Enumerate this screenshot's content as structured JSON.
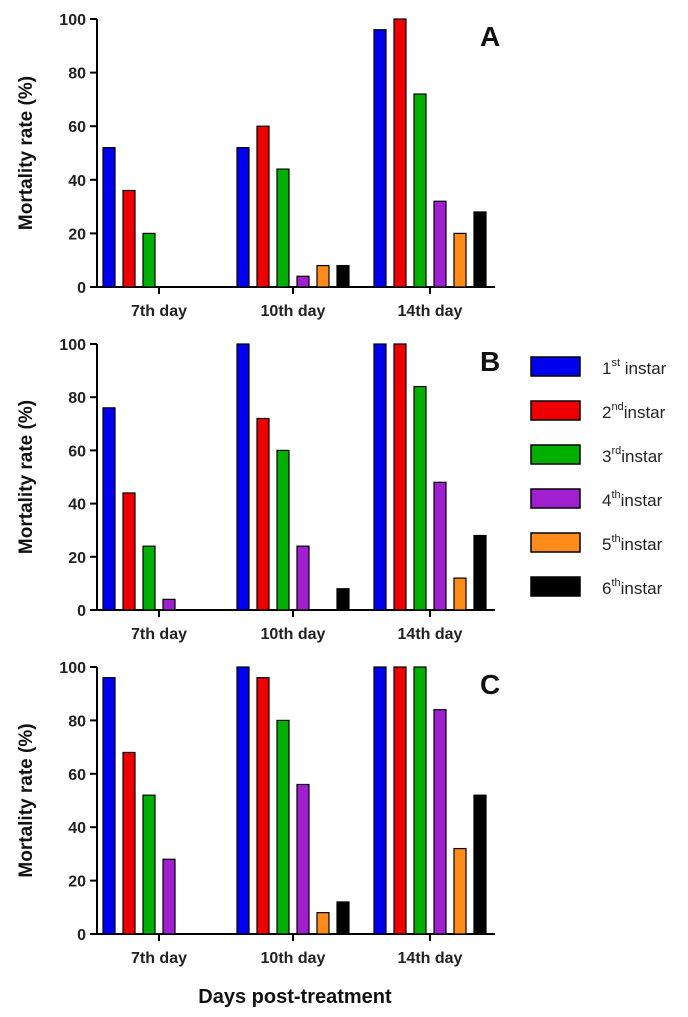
{
  "chart_data": [
    {
      "type": "bar",
      "panel_label": "A",
      "ylabel": "Mortality rate (%)",
      "ylim": [
        0,
        100
      ],
      "yticks": [
        0,
        20,
        40,
        60,
        80,
        100
      ],
      "categories": [
        "7th day",
        "10th day",
        "14th day"
      ],
      "series": [
        {
          "name": "1st instar",
          "values": [
            52,
            52,
            96
          ]
        },
        {
          "name": "2nd instar",
          "values": [
            36,
            60,
            100
          ]
        },
        {
          "name": "3rd instar",
          "values": [
            20,
            44,
            72
          ]
        },
        {
          "name": "4th instar",
          "values": [
            0,
            4,
            32
          ]
        },
        {
          "name": "5th instar",
          "values": [
            0,
            8,
            20
          ]
        },
        {
          "name": "6th instar",
          "values": [
            0,
            8,
            28
          ]
        }
      ]
    },
    {
      "type": "bar",
      "panel_label": "B",
      "ylabel": "Mortality rate (%)",
      "ylim": [
        0,
        100
      ],
      "yticks": [
        0,
        20,
        40,
        60,
        80,
        100
      ],
      "categories": [
        "7th day",
        "10th day",
        "14th day"
      ],
      "series": [
        {
          "name": "1st instar",
          "values": [
            76,
            100,
            100
          ]
        },
        {
          "name": "2nd instar",
          "values": [
            44,
            72,
            100
          ]
        },
        {
          "name": "3rd instar",
          "values": [
            24,
            60,
            84
          ]
        },
        {
          "name": "4th instar",
          "values": [
            4,
            24,
            48
          ]
        },
        {
          "name": "5th instar",
          "values": [
            0,
            0,
            12
          ]
        },
        {
          "name": "6th instar",
          "values": [
            0,
            8,
            28
          ]
        }
      ]
    },
    {
      "type": "bar",
      "panel_label": "C",
      "ylabel": "Mortality rate (%)",
      "ylim": [
        0,
        100
      ],
      "yticks": [
        0,
        20,
        40,
        60,
        80,
        100
      ],
      "categories": [
        "7th day",
        "10th day",
        "14th day"
      ],
      "series": [
        {
          "name": "1st instar",
          "values": [
            96,
            100,
            100
          ]
        },
        {
          "name": "2nd instar",
          "values": [
            68,
            96,
            100
          ]
        },
        {
          "name": "3rd instar",
          "values": [
            52,
            80,
            100
          ]
        },
        {
          "name": "4th instar",
          "values": [
            28,
            56,
            84
          ]
        },
        {
          "name": "5th instar",
          "values": [
            0,
            8,
            32
          ]
        },
        {
          "name": "6th instar",
          "values": [
            0,
            12,
            52
          ]
        }
      ]
    }
  ],
  "xlabel": "Days post-treatment",
  "legend": {
    "placement": "right",
    "items": [
      {
        "num": "1",
        "sup": "st",
        "text": " instar",
        "color": "#0000ee"
      },
      {
        "num": "2",
        "sup": "nd",
        "text": "instar",
        "color": "#ee0000"
      },
      {
        "num": "3",
        "sup": "rd",
        "text": "instar",
        "color": "#00b000"
      },
      {
        "num": "4",
        "sup": "th",
        "text": "instar",
        "color": "#a020d0"
      },
      {
        "num": "5",
        "sup": "th",
        "text": "instar",
        "color": "#ff8c1a"
      },
      {
        "num": "6",
        "sup": "th",
        "text": "instar",
        "color": "#000000"
      }
    ]
  }
}
